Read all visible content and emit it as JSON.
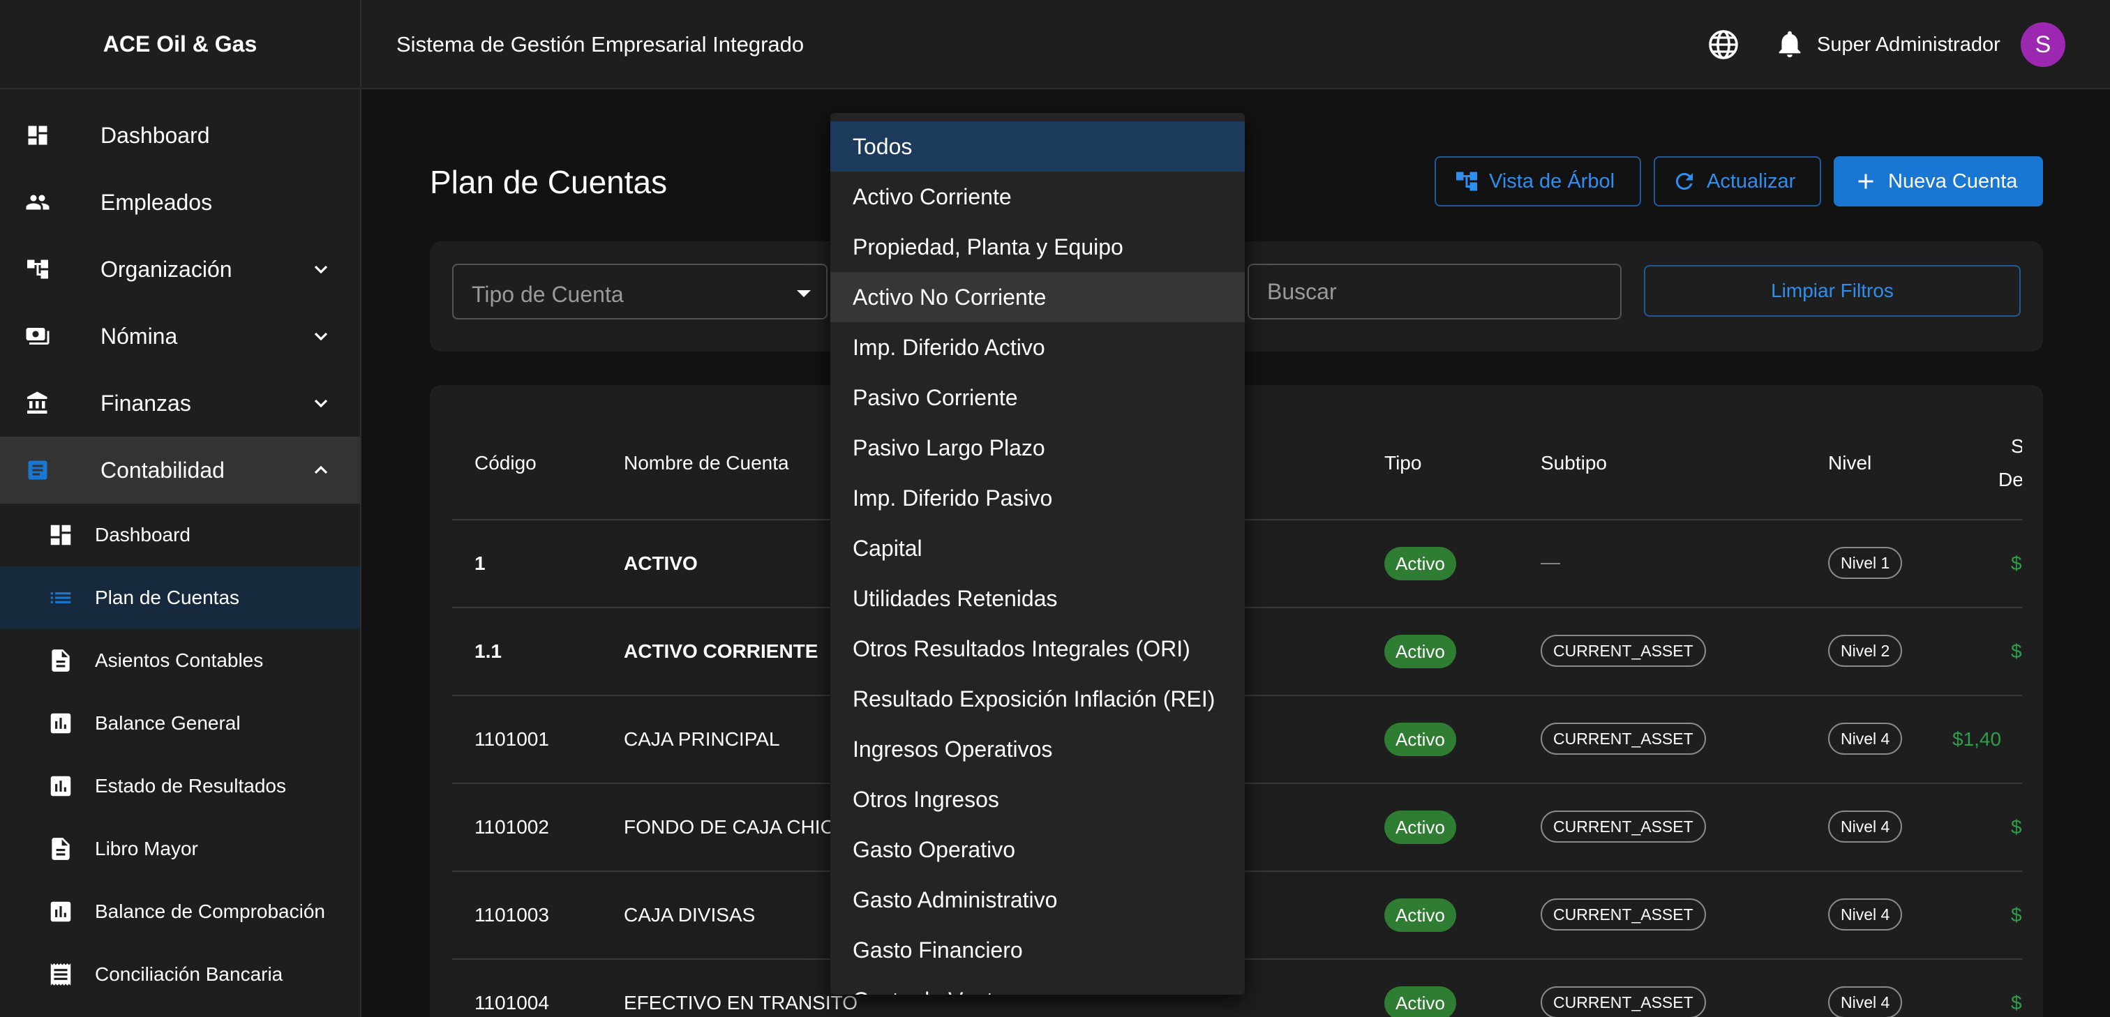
{
  "sidebar": {
    "brand": "ACE Oil & Gas",
    "items": [
      {
        "label": "Dashboard",
        "icon": "dashboard-icon"
      },
      {
        "label": "Empleados",
        "icon": "people-icon"
      },
      {
        "label": "Organización",
        "icon": "org-tree-icon"
      },
      {
        "label": "Nómina",
        "icon": "payroll-icon"
      },
      {
        "label": "Finanzas",
        "icon": "bank-icon"
      },
      {
        "label": "Contabilidad",
        "icon": "ledger-icon"
      }
    ],
    "sub_items": [
      {
        "label": "Dashboard",
        "icon": "dashboard-icon"
      },
      {
        "label": "Plan de Cuentas",
        "icon": "list-icon"
      },
      {
        "label": "Asientos Contables",
        "icon": "document-icon"
      },
      {
        "label": "Balance General",
        "icon": "bar-chart-icon"
      },
      {
        "label": "Estado de Resultados",
        "icon": "bar-chart-icon"
      },
      {
        "label": "Libro Mayor",
        "icon": "document-icon"
      },
      {
        "label": "Balance de Comprobación",
        "icon": "bar-chart-icon"
      },
      {
        "label": "Conciliación Bancaria",
        "icon": "receipt-icon"
      }
    ]
  },
  "header": {
    "title": "Sistema de Gestión Empresarial Integrado",
    "user": "Super Administrador",
    "avatar_initial": "S"
  },
  "page": {
    "title": "Plan de Cuentas",
    "tree_button": "Vista de Árbol",
    "refresh_button": "Actualizar",
    "new_button": "Nueva Cuenta"
  },
  "filters": {
    "type_placeholder": "Tipo de Cuenta",
    "search_placeholder": "Buscar",
    "clear_button": "Limpiar Filtros"
  },
  "table": {
    "headers": {
      "code": "Código",
      "name": "Nombre de Cuenta",
      "type": "Tipo",
      "subtype": "Subtipo",
      "level": "Nivel",
      "balance_a": "S",
      "balance_b": "De"
    },
    "rows": [
      {
        "code": "1",
        "name": "ACTIVO",
        "type": "Activo",
        "subtype": "—",
        "level": "Nivel 1",
        "amount": "$",
        "bold": true
      },
      {
        "code": "1.1",
        "name": "ACTIVO CORRIENTE",
        "type": "Activo",
        "subtype": "CURRENT_ASSET",
        "level": "Nivel 2",
        "amount": "$",
        "bold": true
      },
      {
        "code": "1101001",
        "name": "CAJA PRINCIPAL",
        "type": "Activo",
        "subtype": "CURRENT_ASSET",
        "level": "Nivel 4",
        "amount": "$1,40",
        "bold": false
      },
      {
        "code": "1101002",
        "name": "FONDO DE CAJA CHICA",
        "type": "Activo",
        "subtype": "CURRENT_ASSET",
        "level": "Nivel 4",
        "amount": "$",
        "bold": false
      },
      {
        "code": "1101003",
        "name": "CAJA DIVISAS",
        "type": "Activo",
        "subtype": "CURRENT_ASSET",
        "level": "Nivel 4",
        "amount": "$",
        "bold": false
      },
      {
        "code": "1101004",
        "name": "EFECTIVO EN TRANSITO",
        "type": "Activo",
        "subtype": "CURRENT_ASSET",
        "level": "Nivel 4",
        "amount": "$",
        "bold": false
      }
    ]
  },
  "dropdown": {
    "options": [
      "Todos",
      "Activo Corriente",
      "Propiedad, Planta y Equipo",
      "Activo No Corriente",
      "Imp. Diferido Activo",
      "Pasivo Corriente",
      "Pasivo Largo Plazo",
      "Imp. Diferido Pasivo",
      "Capital",
      "Utilidades Retenidas",
      "Otros Resultados Integrales (ORI)",
      "Resultado Exposición Inflación (REI)",
      "Ingresos Operativos",
      "Otros Ingresos",
      "Gasto Operativo",
      "Gasto Administrativo",
      "Gasto Financiero",
      "Costo de Ventas"
    ],
    "selected_index": 0,
    "hover_index": 3
  },
  "colors": {
    "accent": "#1976d2",
    "active_chip": "#2e7d32",
    "avatar": "#9c27b0",
    "money": "#2e9e48"
  }
}
